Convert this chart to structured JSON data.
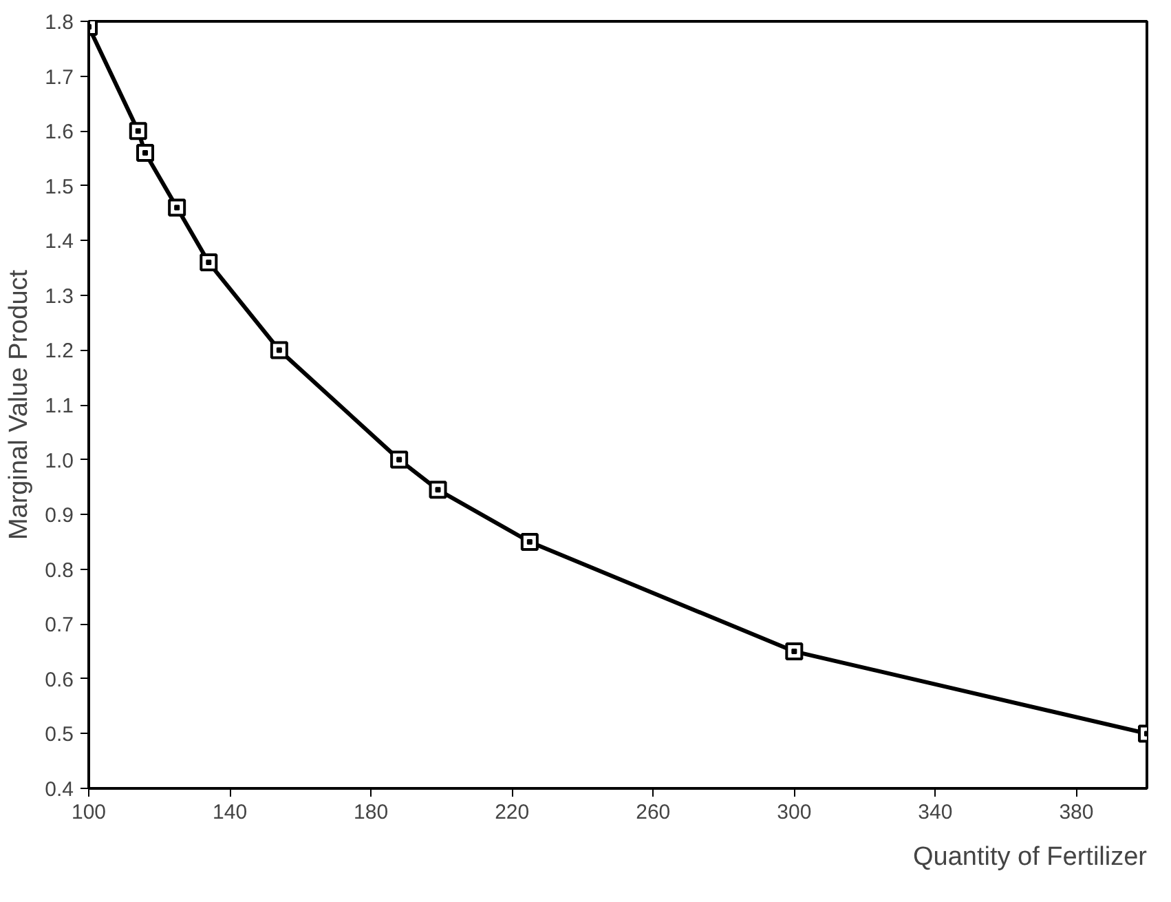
{
  "chart_data": {
    "type": "line",
    "xlabel": "Quantity of Fertilizer",
    "ylabel": "Marginal Value Product",
    "x": [
      100,
      114,
      116,
      125,
      134,
      154,
      188,
      199,
      225,
      300,
      400
    ],
    "series": [
      {
        "color": "#000000",
        "values": [
          1.79,
          1.6,
          1.56,
          1.46,
          1.36,
          1.2,
          1.0,
          0.945,
          0.85,
          0.65,
          0.5
        ]
      }
    ],
    "xlim": [
      100,
      400
    ],
    "xticks": [
      100,
      140,
      180,
      220,
      260,
      300,
      340,
      380
    ],
    "ylim": [
      0.4,
      1.8
    ],
    "yticks": [
      0.4,
      0.5,
      0.6,
      0.7,
      0.8,
      0.9,
      {
        "value": 1,
        "label": "1.0"
      },
      1.1,
      1.2,
      1.3,
      1.4,
      1.5,
      1.6,
      1.7,
      1.8
    ],
    "grid": false,
    "marker": "square",
    "line_style": "solid"
  }
}
